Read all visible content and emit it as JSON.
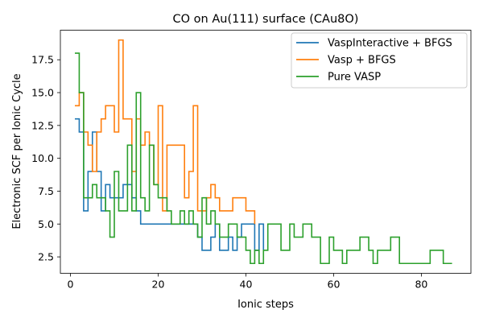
{
  "chart_data": {
    "type": "line",
    "drawstyle": "steps-post",
    "title": "CO on Au(111) surface (CAu8O)",
    "xlabel": "Ionic steps",
    "ylabel": "Electronic SCF per Ionic Cycle",
    "xlim": [
      -2.3,
      91.3
    ],
    "ylim": [
      1.25,
      19.75
    ],
    "xticks": [
      0,
      20,
      40,
      60,
      80
    ],
    "yticks": [
      2.5,
      5.0,
      7.5,
      10.0,
      12.5,
      15.0,
      17.5
    ],
    "ytick_labels": [
      "2.5",
      "5.0",
      "7.5",
      "10.0",
      "12.5",
      "15.0",
      "17.5"
    ],
    "legend_position": "top-right",
    "series": [
      {
        "name": "VaspInteractive + BFGS",
        "color": "#1f77b4",
        "x": [
          1,
          2,
          3,
          4,
          5,
          6,
          7,
          8,
          9,
          10,
          11,
          12,
          13,
          14,
          15,
          16,
          17,
          18,
          19,
          20,
          21,
          22,
          23,
          24,
          25,
          26,
          27,
          28,
          29,
          30,
          31,
          32,
          33,
          34,
          35,
          36,
          37,
          38,
          39,
          40,
          41,
          42,
          43,
          44
        ],
        "y": [
          13,
          12,
          6,
          9,
          12,
          9,
          6,
          8,
          7,
          7,
          7,
          8,
          8,
          7,
          6,
          5,
          5,
          5,
          5,
          5,
          5,
          5,
          5,
          5,
          5,
          5,
          5,
          5,
          4,
          3,
          3,
          4,
          5,
          3,
          3,
          4,
          3,
          4,
          5,
          5,
          5,
          3,
          5,
          3
        ]
      },
      {
        "name": "Vasp + BFGS",
        "color": "#ff7f0e",
        "x": [
          1,
          2,
          3,
          4,
          5,
          6,
          7,
          8,
          9,
          10,
          11,
          12,
          13,
          14,
          15,
          16,
          17,
          18,
          19,
          20,
          21,
          22,
          23,
          24,
          25,
          26,
          27,
          28,
          29,
          30,
          31,
          32,
          33,
          34,
          35,
          36,
          37,
          38,
          39,
          40,
          41,
          42
        ],
        "y": [
          14,
          15,
          12,
          11,
          9,
          12,
          13,
          14,
          14,
          12,
          19,
          13,
          13,
          9,
          13,
          11,
          12,
          11,
          8,
          14,
          6,
          11,
          11,
          11,
          11,
          7,
          9,
          14,
          6,
          6,
          7,
          8,
          7,
          6,
          6,
          6,
          7,
          7,
          7,
          6,
          6,
          5
        ]
      },
      {
        "name": "Pure VASP",
        "color": "#2ca02c",
        "x": [
          1,
          2,
          3,
          4,
          5,
          6,
          7,
          8,
          9,
          10,
          11,
          12,
          13,
          14,
          15,
          16,
          17,
          18,
          19,
          20,
          21,
          22,
          23,
          24,
          25,
          26,
          27,
          28,
          29,
          30,
          31,
          32,
          33,
          34,
          35,
          36,
          37,
          38,
          39,
          40,
          41,
          42,
          43,
          44,
          45,
          46,
          47,
          48,
          49,
          50,
          51,
          52,
          53,
          54,
          55,
          56,
          57,
          58,
          59,
          60,
          61,
          62,
          63,
          64,
          65,
          66,
          67,
          68,
          69,
          70,
          71,
          72,
          73,
          74,
          75,
          76,
          77,
          78,
          79,
          80,
          81,
          82,
          83,
          84,
          85,
          86,
          87
        ],
        "y": [
          18,
          15,
          7,
          7,
          8,
          7,
          7,
          6,
          4,
          9,
          6,
          6,
          11,
          6,
          15,
          7,
          6,
          11,
          8,
          7,
          7,
          6,
          5,
          5,
          6,
          5,
          6,
          5,
          4,
          7,
          5,
          6,
          5,
          4,
          4,
          5,
          5,
          4,
          4,
          3,
          2,
          3,
          2,
          3,
          5,
          5,
          5,
          3,
          3,
          5,
          4,
          4,
          5,
          5,
          4,
          4,
          2,
          2,
          4,
          3,
          3,
          2,
          3,
          3,
          3,
          4,
          4,
          3,
          2,
          3,
          3,
          3,
          4,
          4,
          2,
          2,
          2,
          2,
          2,
          2,
          2,
          3,
          3,
          3,
          2,
          2,
          2
        ]
      }
    ]
  }
}
